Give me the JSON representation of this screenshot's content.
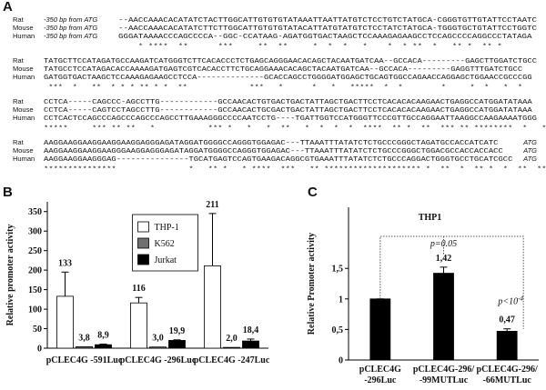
{
  "panels": [
    "A",
    "B",
    "C"
  ],
  "alignment": {
    "blocks": [
      {
        "rows": [
          {
            "species": "Rat",
            "prefix": "-350 bp from ATG",
            "seq": "--AACCAAACACATATCTACTTGGCATTGTGTGTATAAATTAATTATGTCTCCTGTCTATGCA-CGGGTGTTGTATTCCTAATC"
          },
          {
            "species": "Mouse",
            "prefix": "-350 bp from ATG",
            "seq": "--AACCAAACACATATCTTCTTGGCATTGTGTGTATACATTATGTATGTCTCCTATCTATGCA-TGGGTGCTGTATTCCTGGTC"
          },
          {
            "species": "Human",
            "prefix": "-350 bp from ATG",
            "seq": "GGGATAAAACCCAGCCCCA--GGC-CCATAAG-AGATGGTGACTAAGCTCCAAAGAGAAGCCTCCAGCCCCAGGCCCTATAGA"
          }
        ],
        "conservation": "    * ****  **      ***     **  **     *  *  *   *    *  * **  *   ** *  ** *"
      },
      {
        "rows": [
          {
            "species": "Rat",
            "seq": "TATGCTTCCATAGATGCCAAGATCATGGGTCTTCACACCCTCTGAGCAGGGAACACAGCTACAATGATCAA--GCCACA---------GAGCTTGGATCTGCC"
          },
          {
            "species": "Mouse",
            "seq": "TATGCCTCCATAGACACCAAAAGATGAGTCGTCACACCTTCTGCAGGAAACACAGCTACAATGATCAA--GCCACA---------GAGGTTTGATCTGCC"
          },
          {
            "species": "Human",
            "seq": "GATGGTGACTAAGCTCCAAAGAGAAGCCTCCA--------------GCACCAGCCTGGGGATGGAGCTGCAGTGGCCAGAACCAGGAGCTGGAACCGCCCGG"
          }
        ],
        "conservation": " ***  *   **  * * * ** * *  **             ***   *      *   *   *****  *  *        *     *  *   *  *"
      },
      {
        "rows": [
          {
            "species": "Rat",
            "seq": "CCTCA-----CAGCCC-AGCCTTG------------GCCAACACTGTGACTGACTATTAGCTGACTTCCTCACACACAAGAACTGAGGCCATGGATATAAA"
          },
          {
            "species": "Mouse",
            "seq": "CCTCA-----CAGTCCTAGCCTTG------------GCCAACACTGCGACTGACTATTAGCTGACTTCCTCACACACAAGAACTGAGGCCATGGATATAAA"
          },
          {
            "species": "Human",
            "seq": "CCTCACTCCAGCCCAGCCCAGCCCAGCCTTGAAAGGGCCCCAATCCTG----TGATTGGTCCATGGGTTCCCGTTGCCAGGAATTAAGGCCAAGAAAATGGG"
          }
        ],
        "conservation": "*****     *** ** **   *           *** *   *   *  **   *  *  *  *  ****  ** *  **  *** ** ********  *   *"
      },
      {
        "rows": [
          {
            "species": "Rat",
            "seq": "AAGGAAGGAAGGAAGGAAGGAGGGAGATAGGATGGGGCCAGGGTGGAGAC---TTAAATTTATATCTCTGCCCGGGCTAGATGCCACCATCATC",
            "suffix": "ATG"
          },
          {
            "species": "Mouse",
            "seq": "AAGGAAGGAAGGAAGGGAAGGAGGGAGATAGGATGGGGCCAGGGTGGAGAC---TTAAATTTATATCTCTGCCCGGGCTGGACGCCACCACCACC",
            "suffix": "ATG"
          },
          {
            "species": "Human",
            "seq": "AAGGAAGGAAGGGAG---------------TGCATGAGTCCAGTGAAGACAGGCGTGAAATTTATATCTCTGCCCAGGACTGGGTGCCTGCATCGCC",
            "suffix": "ATG"
          }
        ],
        "conservation": "***************               *   ** *   * ****  ***   ** ******************** *  **  *  ** *  *  **  ***"
      }
    ]
  },
  "chart_data": [
    {
      "type": "bar",
      "ylabel": "Relative promoter activity",
      "categories": [
        "pCLEC4G -591Luc",
        "pCLEC4G -296Luc",
        "pCLEC4G -247Luc"
      ],
      "series": [
        {
          "name": "THP-1",
          "color": "#ffffff",
          "values": [
            133,
            116,
            211
          ],
          "errors": [
            62,
            14,
            134
          ]
        },
        {
          "name": "K562",
          "color": "#707070",
          "values": [
            3.8,
            3.0,
            2.0
          ],
          "value_labels": [
            "3,8",
            "3,0",
            "2,0"
          ]
        },
        {
          "name": "Jurkat",
          "color": "#000000",
          "values": [
            8.9,
            19.9,
            18.4
          ],
          "value_labels": [
            "8,9",
            "19,9",
            "18,4"
          ],
          "errors": [
            1.5,
            1.5,
            5
          ]
        }
      ],
      "show_value_labels": true,
      "ylim": [
        0,
        375
      ],
      "yticks": [
        0,
        50,
        100,
        150,
        200,
        250,
        300,
        350
      ],
      "legend": "upper center"
    },
    {
      "type": "bar",
      "title": "THP1",
      "ylabel": "Relative Promoter activity",
      "categories": [
        [
          "pCLEC4G",
          "-296Luc"
        ],
        [
          "pCLEC4G-296/",
          "-99MUTLuc"
        ],
        [
          "pCLEC4G-296/",
          "-66MUTLuc"
        ]
      ],
      "values": [
        1,
        1.42,
        0.47
      ],
      "value_labels": [
        null,
        "1,42",
        "0,47"
      ],
      "errors": [
        0,
        0.1,
        0.04
      ],
      "color": "#000000",
      "ylim": [
        0,
        2.5
      ],
      "yticks": [
        0,
        {
          "value": 0.5,
          "label": "0,5"
        },
        1,
        {
          "value": 1.5,
          "label": "1,5"
        }
      ],
      "annotations": [
        {
          "text": "p=0.05"
        },
        {
          "text": "p<10",
          "superscript": "-4"
        }
      ]
    }
  ]
}
